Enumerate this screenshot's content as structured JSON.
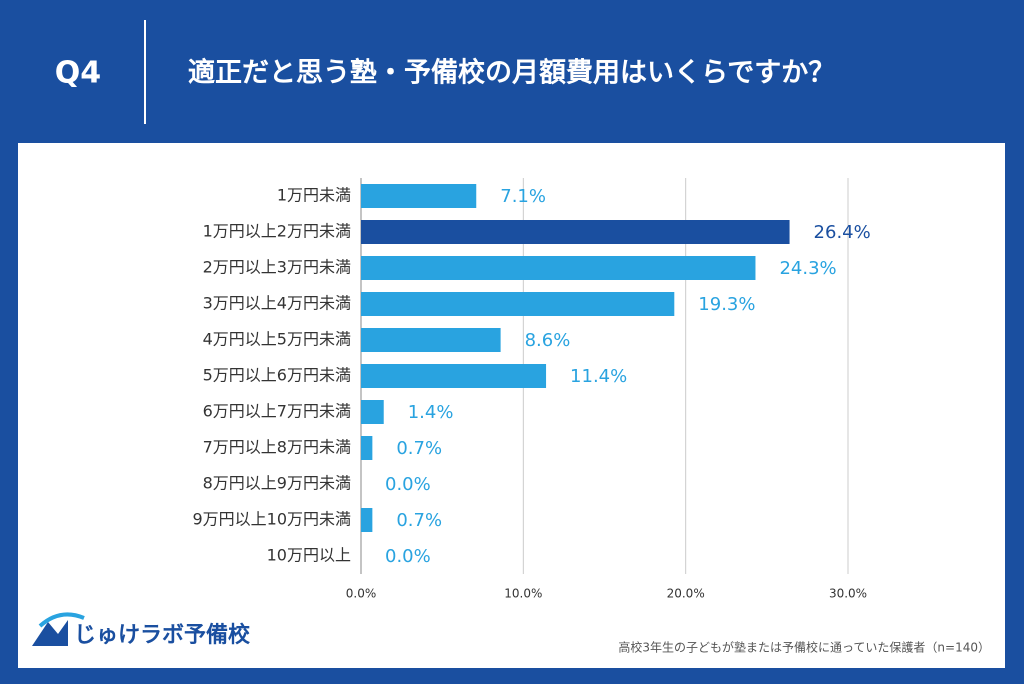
{
  "header": {
    "label": "Q4",
    "title": "適正だと思う塾・予備校の月額費用はいくらですか？"
  },
  "chart_data": {
    "type": "bar",
    "orientation": "horizontal",
    "categories": [
      "1万円未満",
      "1万円以上2万円未満",
      "2万円以上3万円未満",
      "3万円以上4万円未満",
      "4万円以上5万円未満",
      "5万円以上6万円未満",
      "6万円以上7万円未満",
      "7万円以上8万円未満",
      "8万円以上9万円未満",
      "9万円以上10万円未満",
      "10万円以上"
    ],
    "values": [
      7.1,
      26.4,
      24.3,
      19.3,
      8.6,
      11.4,
      1.4,
      0.7,
      0.0,
      0.7,
      0.0
    ],
    "value_labels": [
      "7.1%",
      "26.4%",
      "24.3%",
      "19.3%",
      "8.6%",
      "11.4%",
      "1.4%",
      "0.7%",
      "0.0%",
      "0.7%",
      "0.0%"
    ],
    "colors": [
      "#29a3e0",
      "#1a4fa0",
      "#29a3e0",
      "#29a3e0",
      "#29a3e0",
      "#29a3e0",
      "#29a3e0",
      "#29a3e0",
      "#29a3e0",
      "#29a3e0",
      "#29a3e0"
    ],
    "xlim": [
      0,
      30
    ],
    "xticks": [
      {
        "value": 0,
        "label": "0.0%"
      },
      {
        "value": 10,
        "label": "10.0%"
      },
      {
        "value": 20,
        "label": "20.0%"
      },
      {
        "value": 30,
        "label": "30.0%"
      }
    ],
    "grid": true
  },
  "footer": {
    "logo": "じゅけラボ予備校",
    "note": "高校3年生の子どもが塾または予備校に通っていた保護者（n=140）"
  }
}
